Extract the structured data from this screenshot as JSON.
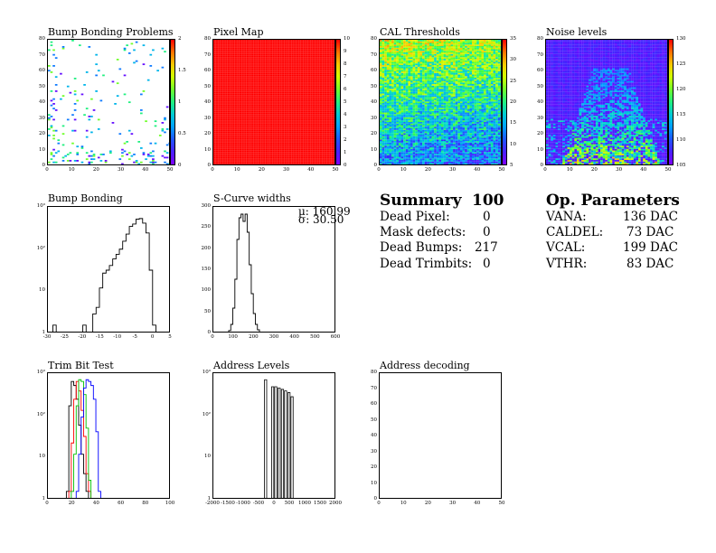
{
  "colors": {
    "hot": "#ff0000",
    "axis": "#000000",
    "line": "#000000"
  },
  "panels": {
    "p1": {
      "title": "Bump Bonding Problems"
    },
    "p2": {
      "title": "Pixel Map"
    },
    "p3": {
      "title": "CAL Thresholds"
    },
    "p4": {
      "title": "Noise levels"
    },
    "p5": {
      "title": "Bump Bonding"
    },
    "p6": {
      "title": "S-Curve widths",
      "stat_mu": "µ: 160.99",
      "stat_sigma": "σ: 30.50"
    },
    "p9": {
      "title": "Trim Bit Test"
    },
    "p10": {
      "title": "Address Levels"
    },
    "p11": {
      "title": "Address decoding"
    }
  },
  "summary": {
    "heading": "Summary",
    "value": "100",
    "rows": [
      {
        "label": "Dead Pixel:",
        "value": "0"
      },
      {
        "label": "Mask defects:",
        "value": "0"
      },
      {
        "label": "Dead Bumps:",
        "value": "217"
      },
      {
        "label": "Dead Trimbits:",
        "value": "0"
      }
    ]
  },
  "op": {
    "heading": "Op. Parameters",
    "rows": [
      {
        "label": "VANA:",
        "value": "136 DAC"
      },
      {
        "label": "CALDEL:",
        "value": "73 DAC"
      },
      {
        "label": "VCAL:",
        "value": "199 DAC"
      },
      {
        "label": "VTHR:",
        "value": "83 DAC"
      }
    ]
  },
  "chart_data": [
    {
      "type": "heatmap",
      "title": "Bump Bonding Problems",
      "xlim": [
        0,
        52
      ],
      "ylim": [
        0,
        80
      ],
      "x_ticks": [
        "0",
        "10",
        "20",
        "30",
        "40",
        "50"
      ],
      "y_ticks": [
        "0",
        "10",
        "20",
        "30",
        "40",
        "50",
        "60",
        "70",
        "80"
      ],
      "colorbar_ticks": [
        "0",
        "0.5",
        "1",
        "1.5",
        "2"
      ]
    },
    {
      "type": "heatmap",
      "title": "Pixel Map",
      "xlim": [
        0,
        52
      ],
      "ylim": [
        0,
        80
      ],
      "z_value": 10,
      "x_ticks": [
        "0",
        "10",
        "20",
        "30",
        "40",
        "50"
      ],
      "y_ticks": [
        "0",
        "10",
        "20",
        "30",
        "40",
        "50",
        "60",
        "70",
        "80"
      ],
      "colorbar_ticks": [
        "0",
        "1",
        "2",
        "3",
        "4",
        "5",
        "6",
        "7",
        "8",
        "9",
        "10"
      ]
    },
    {
      "type": "heatmap",
      "title": "CAL Thresholds",
      "xlim": [
        0,
        52
      ],
      "ylim": [
        0,
        80
      ],
      "x_ticks": [
        "0",
        "10",
        "20",
        "30",
        "40",
        "50"
      ],
      "y_ticks": [
        "0",
        "10",
        "20",
        "30",
        "40",
        "50",
        "60",
        "70",
        "80"
      ],
      "colorbar_ticks": [
        "5",
        "10",
        "15",
        "20",
        "25",
        "30",
        "35"
      ]
    },
    {
      "type": "heatmap",
      "title": "Noise levels",
      "xlim": [
        0,
        52
      ],
      "ylim": [
        0,
        80
      ],
      "x_ticks": [
        "0",
        "10",
        "20",
        "30",
        "40",
        "50"
      ],
      "y_ticks": [
        "0",
        "10",
        "20",
        "30",
        "40",
        "50",
        "60",
        "70",
        "80"
      ],
      "colorbar_ticks": [
        "105",
        "110",
        "115",
        "120",
        "125",
        "130"
      ]
    },
    {
      "type": "line",
      "title": "Bump Bonding",
      "log_y": true,
      "xlim": [
        -32,
        5
      ],
      "ylim": [
        0.6,
        1500
      ],
      "x_ticks": [
        "-30",
        "-25",
        "-20",
        "-15",
        "-10",
        "-5",
        "0",
        "5"
      ],
      "y_ticks": [
        "1",
        "10",
        "10²",
        "10³"
      ],
      "series": [
        {
          "x": [
            -31,
            -30,
            -29,
            -28,
            -27,
            -26,
            -25,
            -24,
            -23,
            -22,
            -21,
            -20,
            -19,
            -18,
            -17,
            -16,
            -15,
            -14,
            -13,
            -12,
            -11,
            -10,
            -9,
            -8,
            -7,
            -6,
            -5,
            -4,
            -3,
            -2,
            -1,
            0
          ],
          "values": [
            0,
            1,
            0,
            0,
            0,
            0,
            0,
            0,
            0,
            0,
            1,
            0,
            0,
            2,
            3,
            10,
            25,
            30,
            40,
            60,
            80,
            110,
            180,
            280,
            450,
            520,
            700,
            730,
            550,
            300,
            30,
            1
          ]
        }
      ]
    },
    {
      "type": "line",
      "title": "S-Curve widths",
      "xlim": [
        0,
        600
      ],
      "ylim": [
        0,
        350
      ],
      "x_ticks": [
        "0",
        "100",
        "200",
        "300",
        "400",
        "500",
        "600"
      ],
      "y_ticks": [
        "0",
        "50",
        "100",
        "150",
        "200",
        "250",
        "300"
      ],
      "series": [
        {
          "x": [
            60,
            70,
            80,
            90,
            100,
            110,
            120,
            130,
            140,
            150,
            160,
            170,
            180,
            190,
            200,
            210,
            220,
            230,
            240,
            250,
            260
          ],
          "values": [
            1,
            3,
            8,
            25,
            70,
            150,
            260,
            320,
            330,
            310,
            330,
            280,
            190,
            110,
            55,
            25,
            10,
            4,
            2,
            1,
            0
          ]
        }
      ]
    },
    {
      "type": "line",
      "title": "Trim Bit Test",
      "log_y": true,
      "xlim": [
        0,
        100
      ],
      "ylim": [
        0.6,
        1500
      ],
      "x_ticks": [
        "0",
        "20",
        "40",
        "60",
        "80",
        "100"
      ],
      "y_ticks": [
        "1",
        "10",
        "10²",
        "10³"
      ],
      "series": [
        {
          "x": [
            16,
            18,
            20,
            22,
            24,
            26,
            28,
            30,
            32,
            34,
            36,
            38
          ],
          "values": [
            1,
            200,
            900,
            700,
            300,
            60,
            10,
            3,
            1,
            0,
            0,
            0
          ]
        },
        {
          "x": [
            18,
            20,
            22,
            24,
            26,
            28,
            30,
            32,
            34,
            36
          ],
          "values": [
            1,
            20,
            300,
            900,
            500,
            150,
            30,
            3,
            1,
            0
          ]
        },
        {
          "x": [
            20,
            22,
            24,
            26,
            28,
            30,
            32,
            34,
            36
          ],
          "values": [
            1,
            10,
            200,
            1000,
            900,
            400,
            50,
            2,
            0
          ]
        },
        {
          "x": [
            24,
            26,
            28,
            30,
            32,
            34,
            36,
            38,
            40,
            42
          ],
          "values": [
            1,
            10,
            100,
            600,
            1000,
            900,
            700,
            300,
            40,
            1
          ]
        }
      ]
    },
    {
      "type": "bar",
      "title": "Address Levels",
      "log_y": true,
      "xlim": [
        -2000,
        2000
      ],
      "ylim": [
        0.6,
        1500
      ],
      "x_ticks": [
        "-2000",
        "-1500",
        "-1000",
        "-500",
        "0",
        "500",
        "1000",
        "1500",
        "2000"
      ],
      "y_ticks": [
        "1",
        "10",
        "10²",
        "10³"
      ],
      "series": [
        {
          "x": [
            -300,
            -70,
            30,
            140,
            250,
            350,
            460,
            560
          ],
          "values": [
            1000,
            650,
            650,
            600,
            550,
            500,
            450,
            350
          ]
        }
      ]
    },
    {
      "type": "heatmap",
      "title": "Address decoding",
      "xlim": [
        0,
        52
      ],
      "ylim": [
        0,
        80
      ],
      "x_ticks": [
        "0",
        "10",
        "20",
        "30",
        "40",
        "50"
      ],
      "y_ticks": [
        "0",
        "10",
        "20",
        "30",
        "40",
        "50",
        "60",
        "70",
        "80"
      ]
    }
  ]
}
